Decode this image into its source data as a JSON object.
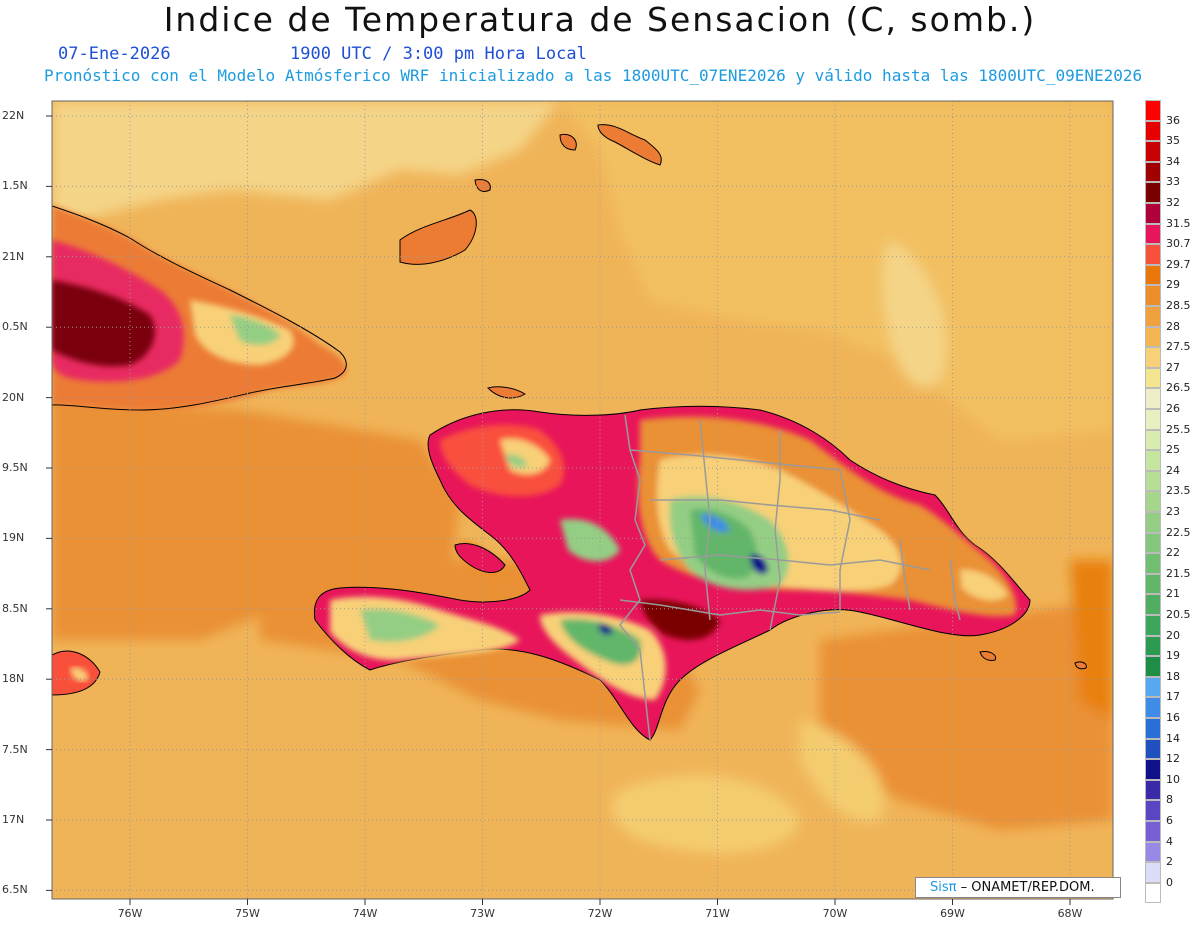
{
  "header": {
    "title": "Indice de Temperatura de Sensacion (C, somb.)",
    "date": "07-Ene-2026",
    "time": "1900 UTC / 3:00 pm Hora Local",
    "model_info": "Pronóstico con el Modelo Atmósferico WRF inicializado a las 1800UTC_07ENE2026 y válido hasta las  1800UTC_09ENE2026"
  },
  "map": {
    "lat_labels": [
      "22N",
      "1.5N",
      "21N",
      "0.5N",
      "20N",
      "9.5N",
      "19N",
      "8.5N",
      "18N",
      "7.5N",
      "17N",
      "6.5N"
    ],
    "lon_labels": [
      "76W",
      "75W",
      "74W",
      "73W",
      "72W",
      "71W",
      "70W",
      "69W",
      "68W"
    ],
    "background_color": "#f0b458",
    "coast_color": "#000000",
    "border_color": "#9a9a9a"
  },
  "colorbar": {
    "labels": [
      "36",
      "35",
      "34",
      "33",
      "32",
      "31.5",
      "30.7",
      "29.7",
      "29",
      "28.5",
      "28",
      "27.5",
      "27",
      "26.5",
      "26",
      "25.5",
      "25",
      "24",
      "23.5",
      "23",
      "22.5",
      "22",
      "21.5",
      "21",
      "20.5",
      "20",
      "19",
      "18",
      "17",
      "16",
      "14",
      "12",
      "10",
      "8",
      "6",
      "4",
      "2",
      "0"
    ],
    "colors": [
      "#ff0000",
      "#e60000",
      "#c80000",
      "#a00000",
      "#7a0000",
      "#b0003a",
      "#e8155a",
      "#f9503c",
      "#e8780a",
      "#ec8f2a",
      "#f0a03c",
      "#f4b650",
      "#f8d078",
      "#f4e690",
      "#eeeec8",
      "#e6f0c0",
      "#d8ecb0",
      "#c6e6a0",
      "#b6de96",
      "#a6d68c",
      "#94ce84",
      "#84c67c",
      "#72be72",
      "#62b66a",
      "#50ae62",
      "#3ea65a",
      "#2c9a50",
      "#1e8e46",
      "#56a8f0",
      "#3e8ce8",
      "#2a6ed8",
      "#1e50c0",
      "#10108a",
      "#3a2aa8",
      "#5a46c2",
      "#7860d4",
      "#9a88e6",
      "#dcdcf6",
      "#ffffff"
    ]
  },
  "credit": {
    "logo": "Sisπ",
    "text": " – ONAMET/REP.DOM."
  }
}
